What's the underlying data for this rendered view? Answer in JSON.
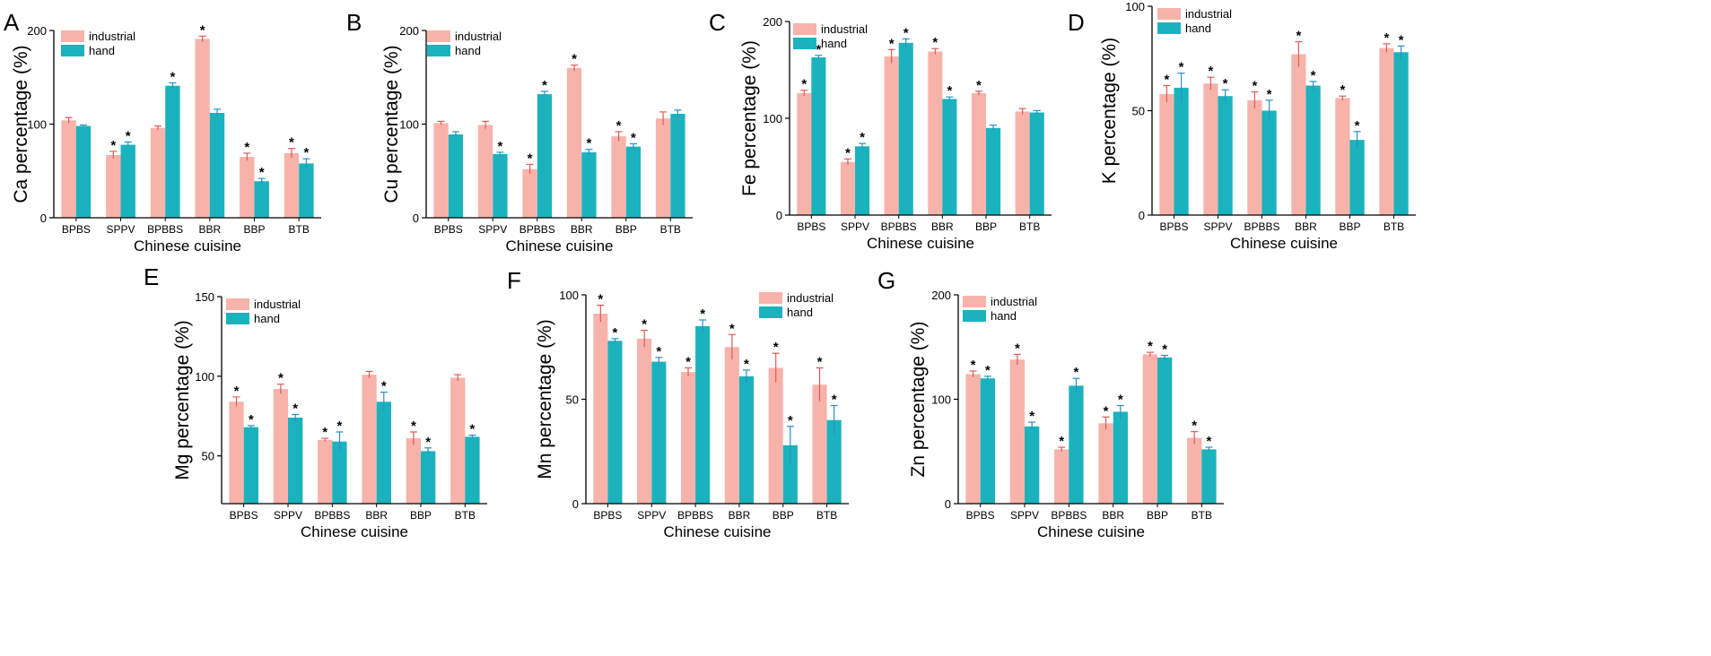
{
  "colors": {
    "industrial": "#f7b3aa",
    "hand": "#1ab3bd",
    "industrial_err": "#e05a55",
    "hand_err": "#2a8fc9",
    "axis": "#000000"
  },
  "chart_data": [
    {
      "type": "bar",
      "panel": "A",
      "categories": [
        "BPBS",
        "SPPV",
        "BPBBS",
        "BBR",
        "BBP",
        "BTB"
      ],
      "series": [
        {
          "name": "industrial",
          "values": [
            104,
            67,
            96,
            191,
            65,
            69
          ],
          "errors": [
            3,
            4,
            2,
            3,
            4,
            5
          ],
          "sig": [
            false,
            true,
            false,
            true,
            true,
            true
          ]
        },
        {
          "name": "hand",
          "values": [
            98,
            78,
            141,
            112,
            39,
            58
          ],
          "errors": [
            1,
            3,
            3,
            4,
            3,
            5
          ],
          "sig": [
            false,
            true,
            true,
            false,
            true,
            true
          ]
        }
      ],
      "ylim": [
        0,
        200
      ],
      "yticks": [
        0,
        100,
        200
      ],
      "ylabel": "Ca percentage (%)",
      "xlabel": "Chinese cuisine"
    },
    {
      "type": "bar",
      "panel": "B",
      "categories": [
        "BPBS",
        "SPPV",
        "BPBBS",
        "BBR",
        "BBP",
        "BTB"
      ],
      "series": [
        {
          "name": "industrial",
          "values": [
            101,
            99,
            52,
            160,
            87,
            106
          ],
          "errors": [
            2,
            4,
            5,
            3,
            5,
            7
          ],
          "sig": [
            false,
            false,
            true,
            true,
            true,
            false
          ]
        },
        {
          "name": "hand",
          "values": [
            89,
            68,
            132,
            70,
            76,
            111
          ],
          "errors": [
            3,
            2,
            3,
            3,
            3,
            4
          ],
          "sig": [
            false,
            true,
            true,
            true,
            true,
            false
          ]
        }
      ],
      "ylim": [
        0,
        200
      ],
      "yticks": [
        0,
        100,
        200
      ],
      "ylabel": "Cu percentage (%)",
      "xlabel": "Chinese cuisine"
    },
    {
      "type": "bar",
      "panel": "C",
      "categories": [
        "BPBS",
        "SPPV",
        "BPBBS",
        "BBR",
        "BBP",
        "BTB"
      ],
      "series": [
        {
          "name": "industrial",
          "values": [
            126,
            55,
            164,
            169,
            126,
            107
          ],
          "errors": [
            3,
            3,
            7,
            3,
            2,
            3
          ],
          "sig": [
            true,
            true,
            true,
            true,
            true,
            false
          ]
        },
        {
          "name": "hand",
          "values": [
            163,
            71,
            178,
            120,
            90,
            106
          ],
          "errors": [
            2,
            3,
            4,
            2,
            3,
            2
          ],
          "sig": [
            true,
            true,
            true,
            true,
            false,
            false
          ]
        }
      ],
      "ylim": [
        0,
        200
      ],
      "yticks": [
        0,
        100,
        200
      ],
      "ylabel": "Fe percentage (%)",
      "xlabel": "Chinese cuisine"
    },
    {
      "type": "bar",
      "panel": "D",
      "categories": [
        "BPBS",
        "SPPV",
        "BPBBS",
        "BBR",
        "BBP",
        "BTB"
      ],
      "series": [
        {
          "name": "industrial",
          "values": [
            58,
            63,
            55,
            77,
            56,
            80
          ],
          "errors": [
            4,
            3,
            4,
            6,
            1,
            2
          ],
          "sig": [
            true,
            true,
            true,
            true,
            true,
            true
          ]
        },
        {
          "name": "hand",
          "values": [
            61,
            57,
            50,
            62,
            36,
            78
          ],
          "errors": [
            7,
            3,
            5,
            2,
            4,
            3
          ],
          "sig": [
            true,
            true,
            true,
            true,
            true,
            true
          ]
        }
      ],
      "ylim": [
        0,
        100
      ],
      "yticks": [
        0,
        50,
        100
      ],
      "ylabel": "K percentage (%)",
      "xlabel": "Chinese cuisine"
    },
    {
      "type": "bar",
      "panel": "E",
      "categories": [
        "BPBS",
        "SPPV",
        "BPBBS",
        "BBR",
        "BBP",
        "BTB"
      ],
      "series": [
        {
          "name": "industrial",
          "values": [
            84,
            92,
            60,
            101,
            61,
            99
          ],
          "errors": [
            3,
            3,
            1,
            2,
            4,
            2
          ],
          "sig": [
            true,
            true,
            true,
            false,
            true,
            false
          ]
        },
        {
          "name": "hand",
          "values": [
            68,
            74,
            59,
            84,
            53,
            62
          ],
          "errors": [
            1,
            2,
            6,
            6,
            2,
            1
          ],
          "sig": [
            true,
            true,
            true,
            true,
            true,
            true
          ]
        }
      ],
      "ylim": [
        20,
        150
      ],
      "yticks": [
        50,
        100,
        150
      ],
      "ylabel": "Mg percentage (%)",
      "xlabel": "Chinese cuisine"
    },
    {
      "type": "bar",
      "panel": "F",
      "categories": [
        "BPBS",
        "SPPV",
        "BPBBS",
        "BBR",
        "BBP",
        "BTB"
      ],
      "series": [
        {
          "name": "industrial",
          "values": [
            91,
            79,
            63,
            75,
            65,
            57
          ],
          "errors": [
            4,
            4,
            2,
            6,
            7,
            8
          ],
          "sig": [
            true,
            true,
            true,
            true,
            true,
            true
          ]
        },
        {
          "name": "hand",
          "values": [
            78,
            68,
            85,
            61,
            28,
            40
          ],
          "errors": [
            1,
            2,
            3,
            3,
            9,
            7
          ],
          "sig": [
            true,
            true,
            true,
            true,
            true,
            true
          ]
        }
      ],
      "ylim": [
        0,
        100
      ],
      "yticks": [
        0,
        50,
        100
      ],
      "ylabel": "Mn percentage (%)",
      "xlabel": "Chinese cuisine"
    },
    {
      "type": "bar",
      "panel": "G",
      "categories": [
        "BPBS",
        "SPPV",
        "BPBBS",
        "BBR",
        "BBP",
        "BTB"
      ],
      "series": [
        {
          "name": "industrial",
          "values": [
            124,
            138,
            52,
            77,
            143,
            63
          ],
          "errors": [
            3,
            5,
            2,
            6,
            2,
            6
          ],
          "sig": [
            true,
            true,
            true,
            true,
            true,
            true
          ]
        },
        {
          "name": "hand",
          "values": [
            120,
            74,
            113,
            88,
            140,
            52
          ],
          "errors": [
            2,
            4,
            7,
            6,
            2,
            2
          ],
          "sig": [
            true,
            true,
            true,
            true,
            true,
            true
          ]
        }
      ],
      "ylim": [
        0,
        200
      ],
      "yticks": [
        0,
        100,
        200
      ],
      "ylabel": "Zn percentage (%)",
      "xlabel": "Chinese cuisine"
    }
  ]
}
